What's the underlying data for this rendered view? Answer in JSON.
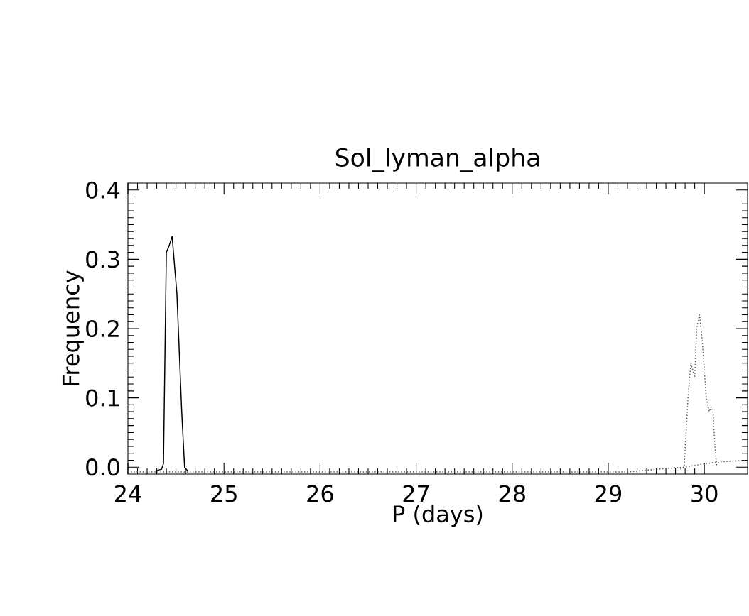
{
  "chart_data": {
    "type": "line",
    "title": "Sol_lyman_alpha",
    "xlabel": "P  (days)",
    "ylabel": "Frequency",
    "xlim": [
      24,
      30.45
    ],
    "ylim": [
      -0.01,
      0.41
    ],
    "xticks": [
      24,
      25,
      26,
      27,
      28,
      29,
      30
    ],
    "yticks": [
      {
        "value": 0,
        "label": "0.0"
      },
      {
        "value": 0.1,
        "label": "0.1"
      },
      {
        "value": 0.2,
        "label": "0.2"
      },
      {
        "value": 0.3,
        "label": "0.3"
      },
      {
        "value": 0.4,
        "label": "0.4"
      }
    ],
    "series": [
      {
        "color": "#000000",
        "line_style": "solid",
        "x": [
          24.3,
          24.35,
          24.37,
          24.4,
          24.43,
          24.46,
          24.51,
          24.56,
          24.59,
          24.62
        ],
        "values": [
          -0.005,
          -0.003,
          0.005,
          0.31,
          0.32,
          0.333,
          0.25,
          0.08,
          0.0,
          -0.005
        ]
      },
      {
        "color": "#555555",
        "line_style": "dotted",
        "x": [
          29.75,
          29.79,
          29.83,
          29.86,
          29.88,
          29.9,
          29.92,
          29.95,
          29.98,
          30.02,
          30.05,
          30.07,
          30.09,
          30.11,
          30.13
        ],
        "values": [
          -0.003,
          0.0,
          0.1,
          0.15,
          0.14,
          0.13,
          0.2,
          0.22,
          0.18,
          0.1,
          0.08,
          0.087,
          0.08,
          0.03,
          0.0
        ]
      },
      {
        "color": "#555555",
        "line_style": "dotted",
        "x": [
          24.0,
          24.6,
          29.2,
          29.5,
          29.8,
          30.0,
          30.2,
          30.45
        ],
        "values": [
          -0.007,
          -0.007,
          -0.007,
          -0.003,
          0.0,
          0.005,
          0.008,
          0.01
        ]
      }
    ]
  }
}
